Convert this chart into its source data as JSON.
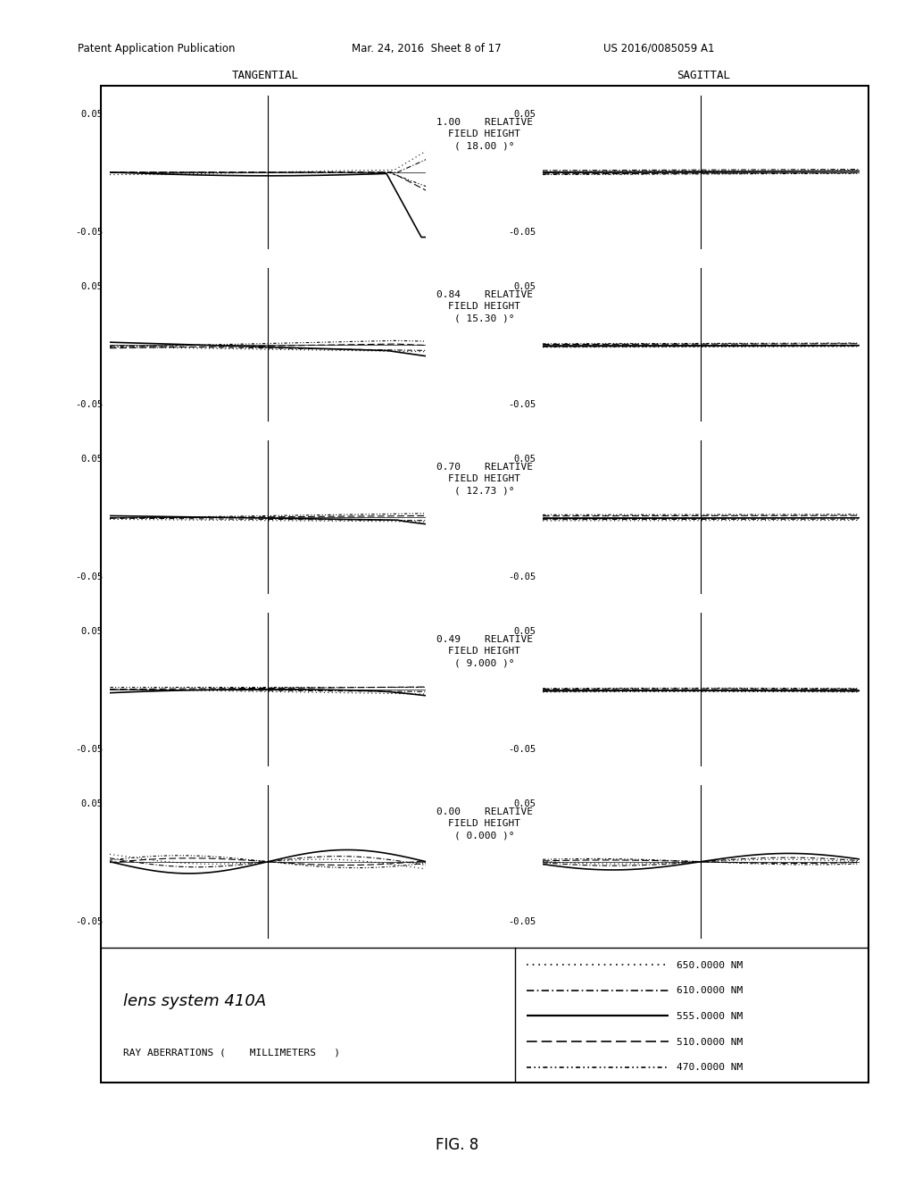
{
  "title_text": "lens system 410A",
  "subtitle_text": "RAY ABERRATIONS (    MILLIMETERS   )",
  "tangential_label": "TANGENTIAL",
  "sagittal_label": "SAGITTAL",
  "field_heights": [
    {
      "rel": "1.00",
      "angle": "18.00"
    },
    {
      "rel": "0.84",
      "angle": "15.30"
    },
    {
      "rel": "0.70",
      "angle": "12.73"
    },
    {
      "rel": "0.49",
      "angle": "9.000"
    },
    {
      "rel": "0.00",
      "angle": "0.000"
    }
  ],
  "ylim": [
    -0.05,
    0.05
  ],
  "background": "#ffffff",
  "line_color": "#000000",
  "legend_entries": [
    {
      "label": "650.0000 NM"
    },
    {
      "label": "610.0000 NM"
    },
    {
      "label": "555.0000 NM"
    },
    {
      "label": "510.0000 NM"
    },
    {
      "label": "470.0000 NM"
    }
  ],
  "patent_line1": "Patent Application Publication",
  "patent_line2": "Mar. 24, 2016  Sheet 8 of 17",
  "patent_line3": "US 2016/0085059 A1",
  "fig_label": "FIG. 8"
}
